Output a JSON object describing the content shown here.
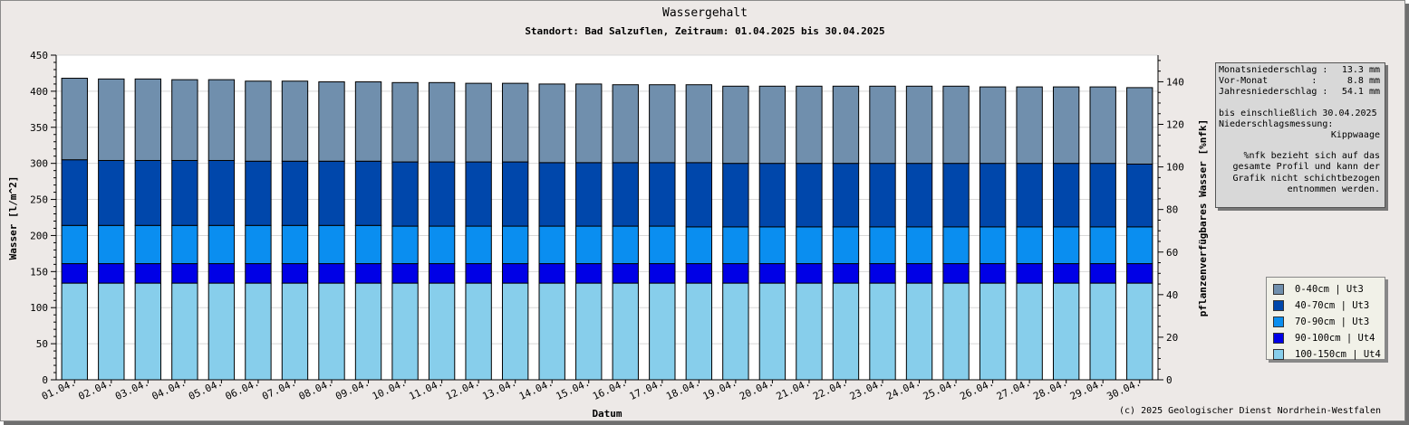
{
  "chart_data": {
    "type": "bar",
    "stacked": true,
    "title": "Wassergehalt",
    "subtitle": "Standort: Bad Salzuflen, Zeitraum: 01.04.2025 bis 30.04.2025",
    "xlabel": "Datum",
    "ylabel": "Wasser [l/m^2]",
    "y2label": "pflanzenverfügbares Wasser [%nfk]",
    "ylim": [
      0,
      450
    ],
    "y2lim": [
      0,
      152.5
    ],
    "yticks": [
      0,
      50,
      100,
      150,
      200,
      250,
      300,
      350,
      400,
      450
    ],
    "y2ticks": [
      0,
      20,
      40,
      60,
      80,
      100,
      120,
      140
    ],
    "grid": true,
    "legend_position": "right",
    "categories": [
      "01.04.",
      "02.04.",
      "03.04.",
      "04.04.",
      "05.04.",
      "06.04.",
      "07.04.",
      "08.04.",
      "09.04.",
      "10.04.",
      "11.04.",
      "12.04.",
      "13.04.",
      "14.04.",
      "15.04.",
      "16.04.",
      "17.04.",
      "18.04.",
      "19.04.",
      "20.04.",
      "21.04.",
      "22.04.",
      "23.04.",
      "24.04.",
      "25.04.",
      "26.04.",
      "27.04.",
      "28.04.",
      "29.04.",
      "30.04."
    ],
    "series": [
      {
        "name": "100-150cm | Ut4",
        "color": "#87ceeb",
        "values": [
          134,
          134,
          134,
          134,
          134,
          134,
          134,
          134,
          134,
          134,
          134,
          134,
          134,
          134,
          134,
          134,
          134,
          134,
          134,
          134,
          134,
          134,
          134,
          134,
          134,
          134,
          134,
          134,
          134,
          134
        ]
      },
      {
        "name": "90-100cm | Ut4",
        "color": "#0000e6",
        "values": [
          27,
          27,
          27,
          27,
          27,
          27,
          27,
          27,
          27,
          27,
          27,
          27,
          27,
          27,
          27,
          27,
          27,
          27,
          27,
          27,
          27,
          27,
          27,
          27,
          27,
          27,
          27,
          27,
          27,
          27
        ]
      },
      {
        "name": "70-90cm | Ut3",
        "color": "#0a8ef0",
        "values": [
          53,
          53,
          53,
          53,
          53,
          53,
          53,
          53,
          53,
          52,
          52,
          52,
          52,
          52,
          52,
          52,
          52,
          51,
          51,
          51,
          51,
          51,
          51,
          51,
          51,
          51,
          51,
          51,
          51,
          51
        ]
      },
      {
        "name": "40-70cm | Ut3",
        "color": "#0047ab",
        "values": [
          91,
          90,
          90,
          90,
          90,
          89,
          89,
          89,
          89,
          89,
          89,
          89,
          89,
          88,
          88,
          88,
          88,
          89,
          88,
          88,
          88,
          88,
          88,
          88,
          88,
          88,
          88,
          88,
          88,
          87
        ]
      },
      {
        "name": "0-40cm | Ut3",
        "color": "#708fad",
        "values": [
          113,
          113,
          113,
          112,
          112,
          111,
          111,
          110,
          110,
          110,
          110,
          109,
          109,
          109,
          109,
          108,
          108,
          108,
          107,
          107,
          107,
          107,
          107,
          107,
          107,
          106,
          106,
          106,
          106,
          106
        ]
      }
    ]
  },
  "info": {
    "rows": [
      {
        "label": "Monatsniederschlag :",
        "value": "13.3 mm"
      },
      {
        "label": "Vor-Monat        :",
        "value": "8.8 mm"
      },
      {
        "label": "Jahresniederschlag :",
        "value": "54.1 mm"
      }
    ],
    "until": "bis einschließlich 30.04.2025",
    "method_label": "Niederschlagsmessung:",
    "method_value": "Kippwaage",
    "note_lines": [
      "%nfk bezieht sich auf das",
      "gesamte Profil und kann der",
      "Grafik nicht schichtbezogen",
      "entnommen werden."
    ]
  },
  "copyright": "(c) 2025 Geologischer Dienst Nordrhein-Westfalen",
  "colors": {
    "background": "#ede9e7",
    "plot_background": "#ffffff",
    "grid": "#d8d8d8"
  }
}
